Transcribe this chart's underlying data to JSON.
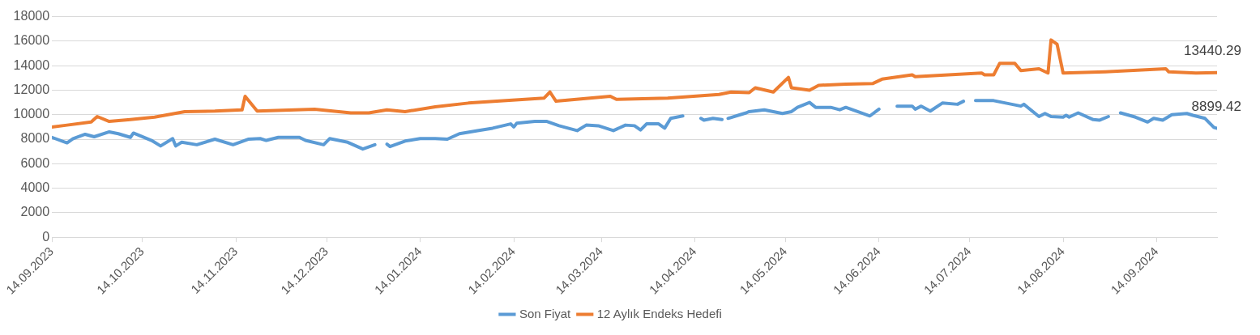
{
  "chart_data": {
    "type": "line",
    "legend": "bottom",
    "grid": "y",
    "marker": "none",
    "line_style": "solid",
    "xlim": [
      "2023-09-14",
      "2024-10-04"
    ],
    "xticks": [
      {
        "value": "2023-09-14",
        "label": "14.09.2023"
      },
      {
        "value": "2023-10-14",
        "label": "14.10.2023"
      },
      {
        "value": "2023-11-14",
        "label": "14.11.2023"
      },
      {
        "value": "2023-12-14",
        "label": "14.12.2023"
      },
      {
        "value": "2024-01-14",
        "label": "14.01.2024"
      },
      {
        "value": "2024-02-14",
        "label": "14.02.2024"
      },
      {
        "value": "2024-03-14",
        "label": "14.03.2024"
      },
      {
        "value": "2024-04-14",
        "label": "14.04.2024"
      },
      {
        "value": "2024-05-14",
        "label": "14.05.2024"
      },
      {
        "value": "2024-06-14",
        "label": "14.06.2024"
      },
      {
        "value": "2024-07-14",
        "label": "14.07.2024"
      },
      {
        "value": "2024-08-14",
        "label": "14.08.2024"
      },
      {
        "value": "2024-09-14",
        "label": "14.09.2024"
      }
    ],
    "ylim": [
      0,
      18000
    ],
    "yticks": [
      0,
      2000,
      4000,
      6000,
      8000,
      10000,
      12000,
      14000,
      16000,
      18000
    ],
    "series": [
      {
        "name": "Son Fiyat",
        "color": "#5b9bd5",
        "x": [
          "2023-09-14",
          "2023-09-19",
          "2023-09-21",
          "2023-09-25",
          "2023-09-28",
          "2023-10-03",
          "2023-10-06",
          "2023-10-10",
          "2023-10-11",
          "2023-10-17",
          "2023-10-20",
          "2023-10-24",
          "2023-10-25",
          "2023-10-27",
          "2023-11-01",
          "2023-11-07",
          "2023-11-13",
          "2023-11-18",
          "2023-11-22",
          "2023-11-24",
          "2023-11-28",
          "2023-12-05",
          "2023-12-07",
          "2023-12-13",
          "2023-12-15",
          "2023-12-21",
          "2023-12-26",
          "2023-12-30",
          "2024-01-01",
          "2024-01-03",
          "2024-01-04",
          "2024-01-09",
          "2024-01-14",
          "2024-01-19",
          "2024-01-23",
          "2024-01-27",
          "2024-02-02",
          "2024-02-07",
          "2024-02-13",
          "2024-02-14",
          "2024-02-15",
          "2024-02-21",
          "2024-02-25",
          "2024-02-29",
          "2024-03-06",
          "2024-03-09",
          "2024-03-13",
          "2024-03-18",
          "2024-03-22",
          "2024-03-25",
          "2024-03-27",
          "2024-03-29",
          "2024-04-02",
          "2024-04-04",
          "2024-04-06",
          "2024-04-10",
          "2024-04-14",
          "2024-04-16",
          "2024-04-17",
          "2024-04-20",
          "2024-04-23",
          "2024-04-24",
          "2024-04-25",
          "2024-04-29",
          "2024-05-01",
          "2024-05-02",
          "2024-05-07",
          "2024-05-13",
          "2024-05-16",
          "2024-05-18",
          "2024-05-22",
          "2024-05-24",
          "2024-05-29",
          "2024-06-01",
          "2024-06-03",
          "2024-06-11",
          "2024-06-14",
          "2024-06-17",
          "2024-06-20",
          "2024-06-25",
          "2024-06-26",
          "2024-06-28",
          "2024-07-01",
          "2024-07-05",
          "2024-07-10",
          "2024-07-12",
          "2024-07-15",
          "2024-07-16",
          "2024-07-22",
          "2024-07-25",
          "2024-07-31",
          "2024-08-01",
          "2024-08-06",
          "2024-08-08",
          "2024-08-10",
          "2024-08-14",
          "2024-08-15",
          "2024-08-16",
          "2024-08-19",
          "2024-08-24",
          "2024-08-26",
          "2024-08-29",
          "2024-08-31",
          "2024-09-02",
          "2024-09-07",
          "2024-09-11",
          "2024-09-13",
          "2024-09-16",
          "2024-09-19",
          "2024-09-24",
          "2024-09-26",
          "2024-09-30",
          "2024-10-03",
          "2024-10-04"
        ],
        "values": [
          8150,
          7700,
          8050,
          8400,
          8200,
          8600,
          8450,
          8150,
          8500,
          7900,
          7450,
          8050,
          7450,
          7750,
          7550,
          8000,
          7550,
          8000,
          8050,
          7900,
          8150,
          8150,
          7900,
          7550,
          8050,
          7750,
          7200,
          7550,
          null,
          7600,
          7400,
          7850,
          8050,
          8050,
          8000,
          8450,
          8700,
          8900,
          9250,
          9000,
          9300,
          9450,
          9450,
          9100,
          8700,
          9150,
          9100,
          8700,
          9150,
          9100,
          8750,
          9250,
          9250,
          8900,
          9700,
          9900,
          null,
          9700,
          9550,
          9700,
          9600,
          null,
          9700,
          10000,
          10150,
          10250,
          10400,
          10100,
          10250,
          10600,
          11000,
          10600,
          10600,
          10400,
          10600,
          9900,
          10450,
          null,
          10700,
          10700,
          10450,
          10700,
          10300,
          10950,
          10850,
          11100,
          null,
          11150,
          11150,
          11000,
          10700,
          10850,
          9850,
          10100,
          9850,
          9800,
          9950,
          9800,
          10150,
          9600,
          9550,
          9850,
          null,
          10150,
          9800,
          9400,
          9700,
          9550,
          10000,
          10100,
          9950,
          9700,
          8950,
          8899.42
        ],
        "value_labels": [
          null,
          null,
          null,
          null,
          null,
          null,
          null,
          null,
          null,
          null,
          null,
          null,
          null,
          null,
          null,
          null,
          null,
          null,
          null,
          null,
          null,
          null,
          null,
          null,
          null,
          null,
          null,
          null,
          null,
          null,
          null,
          null,
          null,
          null,
          null,
          null,
          null,
          null,
          null,
          null,
          null,
          null,
          null,
          null,
          null,
          null,
          null,
          null,
          null,
          null,
          null,
          null,
          null,
          null,
          null,
          null,
          null,
          null,
          null,
          null,
          null,
          null,
          null,
          null,
          null,
          null,
          null,
          null,
          null,
          null,
          null,
          null,
          null,
          null,
          null,
          null,
          null,
          null,
          null,
          null,
          null,
          null,
          null,
          null,
          null,
          null,
          null,
          null,
          null,
          null,
          null,
          null,
          null,
          null,
          null,
          null,
          null,
          null,
          null,
          null,
          null,
          null,
          null,
          null,
          null,
          null,
          null,
          null,
          null,
          null,
          null,
          null,
          null,
          "8899.42"
        ]
      },
      {
        "name": "12 Aylık Endeks Hedefi",
        "color": "#ed7d31",
        "x": [
          "2023-09-14",
          "2023-09-19",
          "2023-09-27",
          "2023-09-29",
          "2023-10-03",
          "2023-10-10",
          "2023-10-18",
          "2023-10-28",
          "2023-11-07",
          "2023-11-16",
          "2023-11-17",
          "2023-11-21",
          "2023-12-10",
          "2023-12-22",
          "2023-12-28",
          "2024-01-03",
          "2024-01-09",
          "2024-01-19",
          "2024-01-30",
          "2024-02-24",
          "2024-02-26",
          "2024-02-28",
          "2024-03-17",
          "2024-03-19",
          "2024-04-05",
          "2024-04-22",
          "2024-04-26",
          "2024-05-02",
          "2024-05-04",
          "2024-05-10",
          "2024-05-15",
          "2024-05-16",
          "2024-05-22",
          "2024-05-25",
          "2024-06-03",
          "2024-06-12",
          "2024-06-15",
          "2024-06-25",
          "2024-06-26",
          "2024-07-18",
          "2024-07-19",
          "2024-07-22",
          "2024-07-24",
          "2024-07-29",
          "2024-07-31",
          "2024-08-06",
          "2024-08-09",
          "2024-08-10",
          "2024-08-12",
          "2024-08-14",
          "2024-08-28",
          "2024-09-17",
          "2024-09-18",
          "2024-09-27",
          "2024-10-04"
        ],
        "values": [
          9000,
          9150,
          9400,
          9850,
          9450,
          9600,
          9800,
          10250,
          10300,
          10400,
          11500,
          10300,
          10450,
          10150,
          10150,
          10400,
          10250,
          10650,
          10950,
          11350,
          11850,
          11100,
          11500,
          11250,
          11350,
          11650,
          11850,
          11800,
          12200,
          11850,
          13050,
          12200,
          12000,
          12400,
          12500,
          12550,
          12900,
          13250,
          13100,
          13400,
          13250,
          13250,
          14200,
          14200,
          13600,
          13750,
          13400,
          16100,
          15750,
          13400,
          13500,
          13750,
          13500,
          13400,
          13440.29
        ],
        "value_labels": [
          null,
          null,
          null,
          null,
          null,
          null,
          null,
          null,
          null,
          null,
          null,
          null,
          null,
          null,
          null,
          null,
          null,
          null,
          null,
          null,
          null,
          null,
          null,
          null,
          null,
          null,
          null,
          null,
          null,
          null,
          null,
          null,
          null,
          null,
          null,
          null,
          null,
          null,
          null,
          null,
          null,
          null,
          null,
          null,
          null,
          null,
          null,
          null,
          null,
          null,
          null,
          null,
          null,
          null,
          "13440.29"
        ]
      }
    ]
  }
}
